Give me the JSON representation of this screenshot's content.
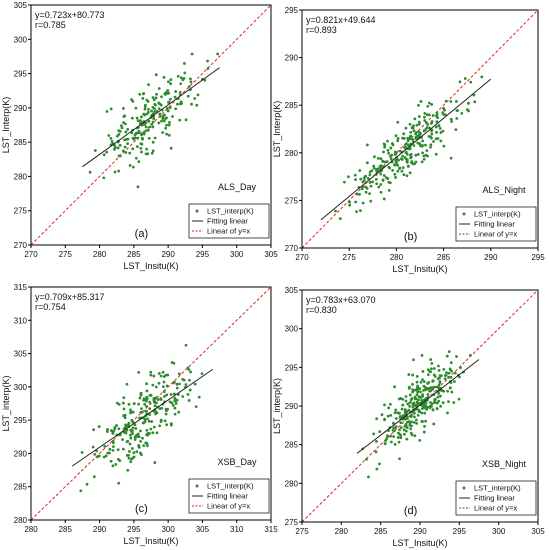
{
  "chart_data": [
    {
      "type": "scatter",
      "xlabel": "LST_Insitu(K)",
      "ylabel": "LST_Interp(K)",
      "xlim": [
        270,
        305
      ],
      "ylim": [
        270,
        305
      ],
      "xticks": [
        270,
        275,
        280,
        285,
        290,
        295,
        300,
        305
      ],
      "yticks": [
        270,
        275,
        280,
        285,
        290,
        295,
        300,
        305
      ],
      "equation": "y=0.723x+80.773",
      "r_text": "r=0.785",
      "site_label": "ALS_Day",
      "panel_label": "(a)",
      "fit": {
        "slope": 0.723,
        "intercept": 80.773,
        "x_range": [
          277.5,
          297.5
        ]
      },
      "series": [
        {
          "name": "LST_interp(K)",
          "role": "points",
          "n": 220,
          "x_range": [
            277.5,
            297.5
          ],
          "spread": 2.6
        },
        {
          "name": "Fitting linear",
          "role": "fit"
        },
        {
          "name": "Linear of y=x",
          "role": "identity"
        }
      ],
      "legend_position": "bottom-right",
      "colors": {
        "points": "#2e8b2e",
        "fit": "#222222",
        "identity": "#d62728"
      }
    },
    {
      "type": "scatter",
      "xlabel": "LST_Insitu(K)",
      "ylabel": "LST_Interp(K)",
      "xlim": [
        270,
        295
      ],
      "ylim": [
        270,
        295
      ],
      "xticks": [
        270,
        275,
        280,
        285,
        290,
        295
      ],
      "yticks": [
        270,
        275,
        280,
        285,
        290,
        295
      ],
      "equation": "y=0.821x+49.644",
      "r_text": "r=0.893",
      "site_label": "ALS_Night",
      "panel_label": "(b)",
      "fit": {
        "slope": 0.821,
        "intercept": 49.644,
        "x_range": [
          272,
          290
        ]
      },
      "series": [
        {
          "name": "LST_interp(K)",
          "role": "points",
          "n": 280,
          "x_range": [
            272,
            290
          ],
          "spread": 1.5
        },
        {
          "name": "Fitting linear",
          "role": "fit"
        },
        {
          "name": "Linear of y=x",
          "role": "identity"
        }
      ],
      "legend_position": "bottom-right",
      "colors": {
        "points": "#2e8b2e",
        "fit": "#222222",
        "identity": "#d62728"
      }
    },
    {
      "type": "scatter",
      "xlabel": "LST_Insitu(K)",
      "ylabel": "LST_interp(K)",
      "xlim": [
        280,
        315
      ],
      "ylim": [
        280,
        315
      ],
      "xticks": [
        280,
        285,
        290,
        295,
        300,
        305,
        310,
        315
      ],
      "yticks": [
        280,
        285,
        290,
        295,
        300,
        305,
        310,
        315
      ],
      "equation": "y=0.709x+85.317",
      "r_text": "r=0.754",
      "site_label": "XSB_Day",
      "panel_label": "(c)",
      "fit": {
        "slope": 0.709,
        "intercept": 85.317,
        "x_range": [
          286,
          306.5
        ]
      },
      "series": [
        {
          "name": "LST_interp(K)",
          "role": "points",
          "n": 260,
          "x_range": [
            286,
            306.5
          ],
          "spread": 2.8
        },
        {
          "name": "Fitting linear",
          "role": "fit"
        },
        {
          "name": "Linear of y=x",
          "role": "identity"
        }
      ],
      "legend_position": "bottom-right",
      "colors": {
        "points": "#2e8b2e",
        "fit": "#222222",
        "identity": "#d62728"
      }
    },
    {
      "type": "scatter",
      "xlabel": "LST_Insitu(K)",
      "ylabel": "LST_interp(K)",
      "xlim": [
        275,
        305
      ],
      "ylim": [
        275,
        305
      ],
      "xticks": [
        275,
        280,
        285,
        290,
        295,
        300,
        305
      ],
      "yticks": [
        275,
        280,
        285,
        290,
        295,
        300,
        305
      ],
      "equation": "y=0.783x+63.070",
      "r_text": "r=0.830",
      "site_label": "XSB_Night",
      "panel_label": "(d)",
      "fit": {
        "slope": 0.783,
        "intercept": 63.07,
        "x_range": [
          282,
          297.5
        ]
      },
      "series": [
        {
          "name": "LST_interp(K)",
          "role": "points",
          "n": 300,
          "x_range": [
            282,
            297.5
          ],
          "spread": 1.9
        },
        {
          "name": "Fitting linear",
          "role": "fit"
        },
        {
          "name": "Linear of y=x",
          "role": "identity"
        }
      ],
      "legend_position": "bottom-right",
      "colors": {
        "points": "#2e8b2e",
        "fit": "#222222",
        "identity": "#d62728"
      }
    }
  ]
}
